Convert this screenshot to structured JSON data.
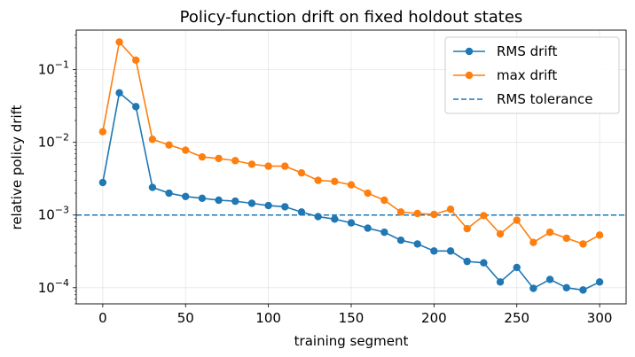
{
  "chart_data": {
    "type": "line",
    "title": "Policy-function drift on fixed holdout states",
    "xlabel": "training segment",
    "ylabel": "relative policy drift",
    "yscale": "log",
    "xlim": [
      -16,
      316
    ],
    "ylim": [
      6e-05,
      0.35
    ],
    "xticks": [
      0,
      50,
      100,
      150,
      200,
      250,
      300
    ],
    "xtick_labels": [
      "0",
      "50",
      "100",
      "150",
      "200",
      "250",
      "300"
    ],
    "yticks": [
      0.0001,
      0.001,
      0.01,
      0.1
    ],
    "ytick_labels": [
      {
        "base": "10",
        "exp": "−4"
      },
      {
        "base": "10",
        "exp": "−3"
      },
      {
        "base": "10",
        "exp": "−2"
      },
      {
        "base": "10",
        "exp": "−1"
      }
    ],
    "grid": true,
    "legend_position": "top-right",
    "x": [
      0,
      10,
      20,
      30,
      40,
      50,
      60,
      70,
      80,
      90,
      100,
      110,
      120,
      130,
      140,
      150,
      160,
      170,
      180,
      190,
      200,
      210,
      220,
      230,
      240,
      250,
      260,
      270,
      280,
      290,
      300
    ],
    "series": [
      {
        "name": "RMS drift",
        "color": "#1f77b4",
        "marker": "circle",
        "values": [
          0.0028,
          0.048,
          0.031,
          0.0024,
          0.002,
          0.0018,
          0.0017,
          0.0016,
          0.00155,
          0.00145,
          0.00135,
          0.0013,
          0.0011,
          0.00095,
          0.00088,
          0.00078,
          0.00066,
          0.00058,
          0.00045,
          0.0004,
          0.00032,
          0.00032,
          0.00023,
          0.00022,
          0.00012,
          0.00019,
          9.8e-05,
          0.00013,
          0.0001,
          9.3e-05,
          0.00012
        ]
      },
      {
        "name": "max drift",
        "color": "#ff7f0e",
        "marker": "circle",
        "values": [
          0.014,
          0.24,
          0.135,
          0.011,
          0.0092,
          0.0078,
          0.0063,
          0.006,
          0.0056,
          0.005,
          0.0047,
          0.0047,
          0.0038,
          0.003,
          0.0029,
          0.0026,
          0.002,
          0.0016,
          0.0011,
          0.00105,
          0.00102,
          0.0012,
          0.00065,
          0.00098,
          0.00055,
          0.00085,
          0.00042,
          0.00058,
          0.00048,
          0.0004,
          0.00053
        ]
      }
    ],
    "reference_lines": [
      {
        "name": "RMS tolerance",
        "y": 0.001,
        "color": "#1f77b4",
        "style": "dashed"
      }
    ]
  }
}
